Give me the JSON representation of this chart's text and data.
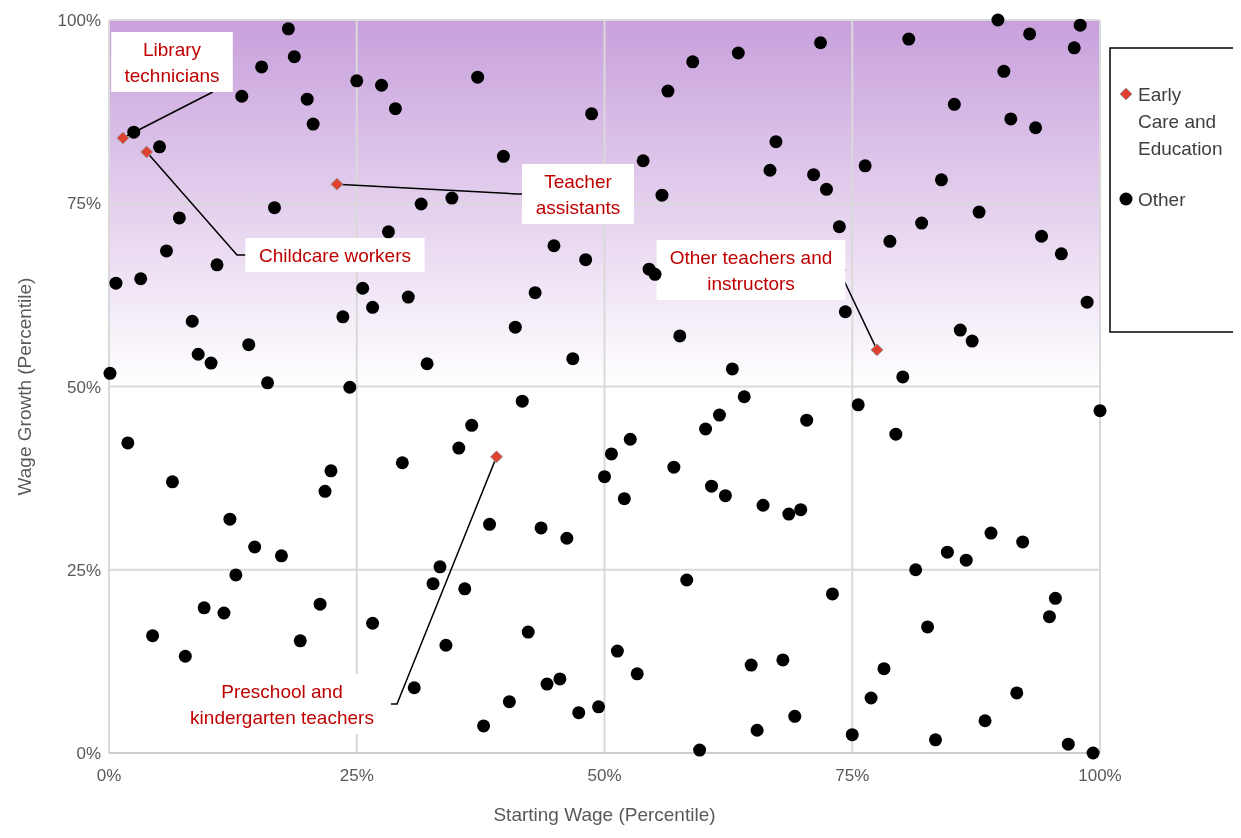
{
  "chart_data": {
    "type": "scatter",
    "xlabel": "Starting Wage (Percentile)",
    "ylabel": "Wage Growth (Percentile)",
    "xlim": [
      0,
      100
    ],
    "ylim": [
      0,
      100
    ],
    "xticks": [
      {
        "value": 0,
        "label": "0%"
      },
      {
        "value": 25,
        "label": "25%"
      },
      {
        "value": 50,
        "label": "50%"
      },
      {
        "value": 75,
        "label": "75%"
      },
      {
        "value": 100,
        "label": "100%"
      }
    ],
    "yticks": [
      {
        "value": 0,
        "label": "0%"
      },
      {
        "value": 25,
        "label": "25%"
      },
      {
        "value": 50,
        "label": "50%"
      },
      {
        "value": 75,
        "label": "75%"
      },
      {
        "value": 100,
        "label": "100%"
      }
    ],
    "grid": true,
    "legend": "right",
    "bands": [
      {
        "axis": "y",
        "from": 50,
        "to": 100,
        "color": "#c8a0dc"
      }
    ],
    "series": [
      {
        "name": "Other",
        "color": "#000000",
        "marker": "circle",
        "x": [
          0.1,
          0.7,
          1.9,
          2.5,
          3.2,
          5.1,
          4.4,
          5.8,
          6.4,
          7.1,
          7.7,
          8.4,
          9.0,
          9.6,
          10.3,
          10.9,
          11.6,
          12.2,
          12.8,
          13.4,
          14.1,
          14.7,
          15.4,
          16.0,
          16.7,
          17.4,
          18.1,
          18.7,
          19.3,
          20.0,
          20.6,
          21.3,
          21.8,
          22.4,
          23.6,
          24.3,
          25.0,
          25.6,
          26.6,
          26.6,
          27.5,
          28.2,
          28.9,
          29.6,
          30.2,
          30.8,
          31.5,
          32.1,
          32.7,
          33.4,
          34.0,
          34.6,
          35.3,
          35.9,
          36.6,
          37.2,
          37.8,
          38.4,
          39.8,
          40.4,
          41.0,
          41.7,
          42.3,
          43.0,
          43.6,
          44.2,
          44.9,
          45.5,
          46.2,
          46.8,
          47.4,
          48.1,
          48.7,
          49.4,
          50.0,
          50.7,
          51.3,
          52.0,
          52.6,
          53.3,
          53.9,
          54.5,
          55.1,
          55.8,
          56.4,
          57.0,
          57.6,
          58.3,
          58.9,
          59.6,
          60.2,
          60.8,
          61.6,
          62.2,
          62.9,
          63.5,
          64.1,
          64.8,
          65.4,
          66.0,
          66.7,
          67.3,
          68.0,
          68.6,
          69.2,
          69.8,
          70.4,
          71.1,
          71.8,
          72.4,
          73.0,
          73.7,
          74.3,
          75.0,
          75.6,
          76.3,
          76.9,
          78.2,
          78.8,
          79.4,
          80.1,
          80.7,
          81.4,
          82.0,
          82.6,
          83.4,
          84.0,
          84.6,
          85.3,
          85.9,
          86.5,
          87.1,
          87.8,
          88.4,
          89.0,
          89.7,
          90.3,
          91.0,
          91.6,
          92.2,
          92.9,
          93.5,
          94.1,
          94.9,
          95.5,
          96.1,
          96.8,
          97.4,
          98.0,
          98.7,
          99.3,
          100
        ],
        "values": [
          51.8,
          64.1,
          42.3,
          84.7,
          64.7,
          82.7,
          16.0,
          68.5,
          37.0,
          73.0,
          13.2,
          58.9,
          54.4,
          19.8,
          53.2,
          66.6,
          19.1,
          31.9,
          24.3,
          89.6,
          55.7,
          28.1,
          93.6,
          50.5,
          74.4,
          26.9,
          98.8,
          95.0,
          15.3,
          89.2,
          85.8,
          20.3,
          35.7,
          38.5,
          59.5,
          49.9,
          91.7,
          63.4,
          60.8,
          17.7,
          91.1,
          71.1,
          87.9,
          39.6,
          62.2,
          8.9,
          74.9,
          53.1,
          23.1,
          25.4,
          14.7,
          75.7,
          41.6,
          22.4,
          44.7,
          92.2,
          3.7,
          31.2,
          81.4,
          7.0,
          58.1,
          48.0,
          16.5,
          62.8,
          30.7,
          9.4,
          69.2,
          10.1,
          29.3,
          53.8,
          5.5,
          67.3,
          87.2,
          6.3,
          37.7,
          40.8,
          13.9,
          34.7,
          42.8,
          10.8,
          80.8,
          66.0,
          65.3,
          76.1,
          90.3,
          39.0,
          56.9,
          23.6,
          94.3,
          0.4,
          44.2,
          36.4,
          46.1,
          35.1,
          52.4,
          95.5,
          48.6,
          12.0,
          3.1,
          33.8,
          79.5,
          83.4,
          12.7,
          32.6,
          5.0,
          33.2,
          45.4,
          78.9,
          96.9,
          76.9,
          21.7,
          71.8,
          60.2,
          2.5,
          47.5,
          80.1,
          7.5,
          11.5,
          69.8,
          43.5,
          51.3,
          97.4,
          25.0,
          72.3,
          17.2,
          1.8,
          78.2,
          27.4,
          88.5,
          57.7,
          26.3,
          56.2,
          73.8,
          4.4,
          30.0,
          100,
          93.0,
          86.5,
          8.2,
          28.8,
          98.1,
          85.3,
          70.5,
          18.6,
          21.1,
          68.1,
          1.2,
          96.2,
          99.3,
          61.5,
          0,
          46.7
        ]
      },
      {
        "name": "Early Care and Education",
        "color": "#e0402f",
        "marker": "diamond",
        "x": [
          1.4,
          3.8,
          23.0,
          77.5,
          39.1
        ],
        "values": [
          83.9,
          82.0,
          77.6,
          55.0,
          40.4
        ]
      }
    ],
    "annotations": [
      {
        "text": "Library technicians",
        "x": 1.4,
        "y": 83.9
      },
      {
        "text": "Childcare workers",
        "x": 3.8,
        "y": 82.0
      },
      {
        "text": "Teacher assistants",
        "x": 23.0,
        "y": 77.6
      },
      {
        "text": "Other teachers and instructors",
        "x": 77.5,
        "y": 55.0
      },
      {
        "text": "Preschool and kindergarten teachers",
        "x": 39.1,
        "y": 40.4
      }
    ]
  }
}
